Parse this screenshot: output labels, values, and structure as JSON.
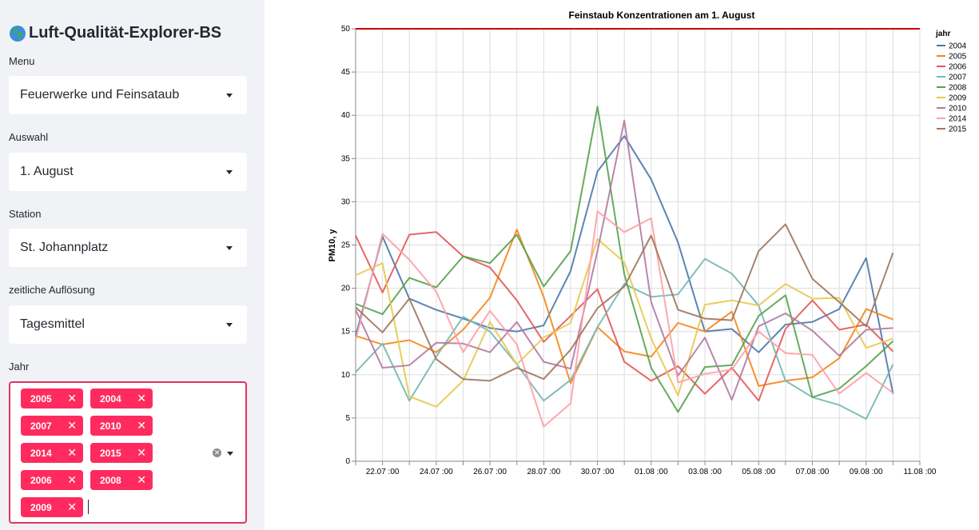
{
  "sidebar": {
    "title": "Luft-Qualität-Explorer-BS",
    "menu": {
      "label": "Menu",
      "value": "Feuerwerke und Feinsataub"
    },
    "auswahl": {
      "label": "Auswahl",
      "value": "1. August"
    },
    "station": {
      "label": "Station",
      "value": "St. Johannplatz"
    },
    "aufloesung": {
      "label": "zeitliche Auflösung",
      "value": "Tagesmittel"
    },
    "jahr": {
      "label": "Jahr",
      "tags": [
        "2005",
        "2004",
        "2007",
        "2010",
        "2014",
        "2015",
        "2006",
        "2008",
        "2009"
      ]
    }
  },
  "chart_data": {
    "type": "line",
    "title": "Feinstaub Konzentrationen am 1. August",
    "xlabel": "",
    "ylabel": "PM10, y",
    "ylim": [
      0,
      50
    ],
    "y_ticks": [
      "0",
      "5",
      "10",
      "15",
      "20",
      "25",
      "30",
      "35",
      "40",
      "45",
      "50"
    ],
    "x_tick_labels": [
      "22.07 :00",
      "24.07 :00",
      "26.07 :00",
      "28.07 :00",
      "30.07 :00",
      "01.08 :00",
      "03.08 :00",
      "05.08 :00",
      "07.08 :00",
      "09.08 :00",
      "11.08 :00"
    ],
    "x_days": [
      "21.07",
      "22.07",
      "23.07",
      "24.07",
      "25.07",
      "26.07",
      "27.07",
      "28.07",
      "29.07",
      "30.07",
      "31.07",
      "01.08",
      "02.08",
      "03.08",
      "04.08",
      "05.08",
      "06.08",
      "07.08",
      "08.08",
      "09.08",
      "10.08",
      "11.08"
    ],
    "threshold": 50,
    "threshold_color": "#cc0000",
    "legend_title": "jahr",
    "legend_position": "right",
    "series": [
      {
        "name": "2004",
        "color": "#4c78a8",
        "values": [
          14.5,
          26.0,
          18.8,
          17.5,
          16.5,
          15.4,
          15.0,
          15.7,
          22.0,
          33.5,
          37.6,
          32.6,
          25.3,
          15.0,
          15.3,
          12.6,
          15.8,
          16.1,
          17.6,
          23.5,
          7.8,
          null
        ]
      },
      {
        "name": "2005",
        "color": "#f58518",
        "values": [
          14.5,
          13.5,
          14.0,
          12.6,
          15.2,
          18.9,
          26.8,
          19.0,
          9.0,
          15.5,
          12.7,
          12.1,
          16.0,
          15.0,
          17.3,
          8.7,
          9.3,
          9.7,
          11.9,
          17.6,
          16.4,
          null
        ]
      },
      {
        "name": "2006",
        "color": "#e45756",
        "values": [
          26.1,
          19.5,
          26.2,
          26.5,
          23.7,
          22.4,
          18.6,
          13.8,
          16.8,
          19.9,
          11.5,
          9.3,
          11.0,
          7.8,
          10.8,
          7.0,
          15.3,
          18.6,
          15.2,
          15.8,
          12.7,
          null
        ]
      },
      {
        "name": "2007",
        "color": "#72b7b2",
        "values": [
          10.3,
          13.6,
          7.0,
          12.1,
          16.7,
          15.0,
          11.2,
          7.0,
          9.4,
          15.5,
          20.5,
          19.0,
          19.3,
          23.4,
          21.7,
          18.0,
          9.3,
          7.4,
          6.5,
          4.9,
          11.2,
          null
        ]
      },
      {
        "name": "2008",
        "color": "#54a24b",
        "values": [
          18.2,
          17.0,
          21.2,
          20.1,
          23.7,
          22.9,
          26.2,
          20.2,
          24.3,
          41.0,
          21.6,
          10.8,
          5.7,
          10.9,
          11.1,
          16.8,
          19.2,
          7.4,
          8.4,
          11.0,
          13.9,
          null
        ]
      },
      {
        "name": "2009",
        "color": "#e6c94a",
        "values": [
          21.5,
          22.9,
          7.5,
          6.3,
          9.3,
          16.1,
          11.2,
          14.3,
          16.0,
          25.7,
          23.0,
          14.2,
          7.6,
          18.1,
          18.6,
          18.0,
          20.5,
          18.8,
          18.9,
          13.1,
          14.2,
          null
        ]
      },
      {
        "name": "2010",
        "color": "#b279a2",
        "values": [
          17.5,
          10.8,
          11.1,
          13.7,
          13.6,
          12.6,
          16.1,
          11.5,
          10.7,
          24.3,
          39.4,
          18.4,
          9.9,
          14.3,
          7.1,
          15.6,
          17.1,
          15.1,
          12.2,
          15.2,
          15.4,
          null
        ]
      },
      {
        "name": "2014",
        "color": "#ff9da6",
        "values": [
          14.0,
          26.3,
          23.3,
          19.6,
          12.6,
          17.4,
          13.5,
          4.0,
          6.7,
          28.9,
          26.5,
          28.1,
          9.1,
          10.1,
          10.6,
          15.0,
          12.5,
          12.3,
          7.8,
          10.2,
          7.9,
          null
        ]
      },
      {
        "name": "2015",
        "color": "#9d755d",
        "values": [
          17.8,
          14.9,
          18.8,
          11.8,
          9.5,
          9.3,
          10.8,
          9.5,
          12.9,
          17.7,
          20.2,
          26.1,
          17.5,
          16.5,
          16.3,
          24.3,
          27.4,
          21.1,
          18.4,
          15.6,
          24.1,
          null
        ]
      }
    ]
  }
}
